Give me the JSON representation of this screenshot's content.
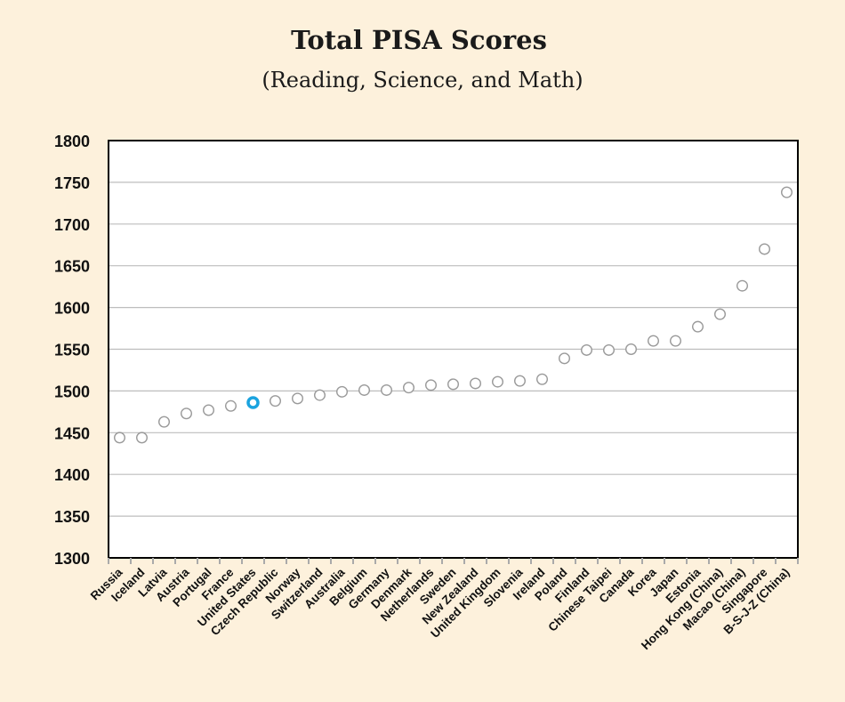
{
  "chart_data": {
    "type": "scatter",
    "title": "Total PISA Scores",
    "subtitle": "(Reading, Science, and Math)",
    "xlabel": "",
    "ylabel": "",
    "ylim": [
      1300,
      1800
    ],
    "yticks": [
      1300,
      1350,
      1400,
      1450,
      1500,
      1550,
      1600,
      1650,
      1700,
      1750,
      1800
    ],
    "grid": true,
    "categories": [
      "Russia",
      "Iceland",
      "Latvia",
      "Austria",
      "Portugal",
      "France",
      "United States",
      "Czech Republic",
      "Norway",
      "Switzerland",
      "Australia",
      "Belgium",
      "Germany",
      "Denmark",
      "Netherlands",
      "Sweden",
      "New Zealand",
      "United Kingdom",
      "Slovenia",
      "Ireland",
      "Poland",
      "Finland",
      "Chinese Taipei",
      "Canada",
      "Korea",
      "Japan",
      "Estonia",
      "Hong Kong (China)",
      "Macao (China)",
      "Singapore",
      "B-S-J-Z (China)"
    ],
    "values": [
      1444,
      1444,
      1463,
      1473,
      1477,
      1482,
      1486,
      1488,
      1491,
      1495,
      1499,
      1501,
      1501,
      1504,
      1507,
      1508,
      1509,
      1511,
      1512,
      1514,
      1539,
      1549,
      1549,
      1550,
      1560,
      1560,
      1577,
      1592,
      1626,
      1670,
      1738
    ],
    "highlight": "United States",
    "colors": {
      "background": "#fdf1dc",
      "marker": "#9a9a9a",
      "highlight": "#1aa3df",
      "grid": "#bdbdbd",
      "axis": "#000000"
    }
  }
}
